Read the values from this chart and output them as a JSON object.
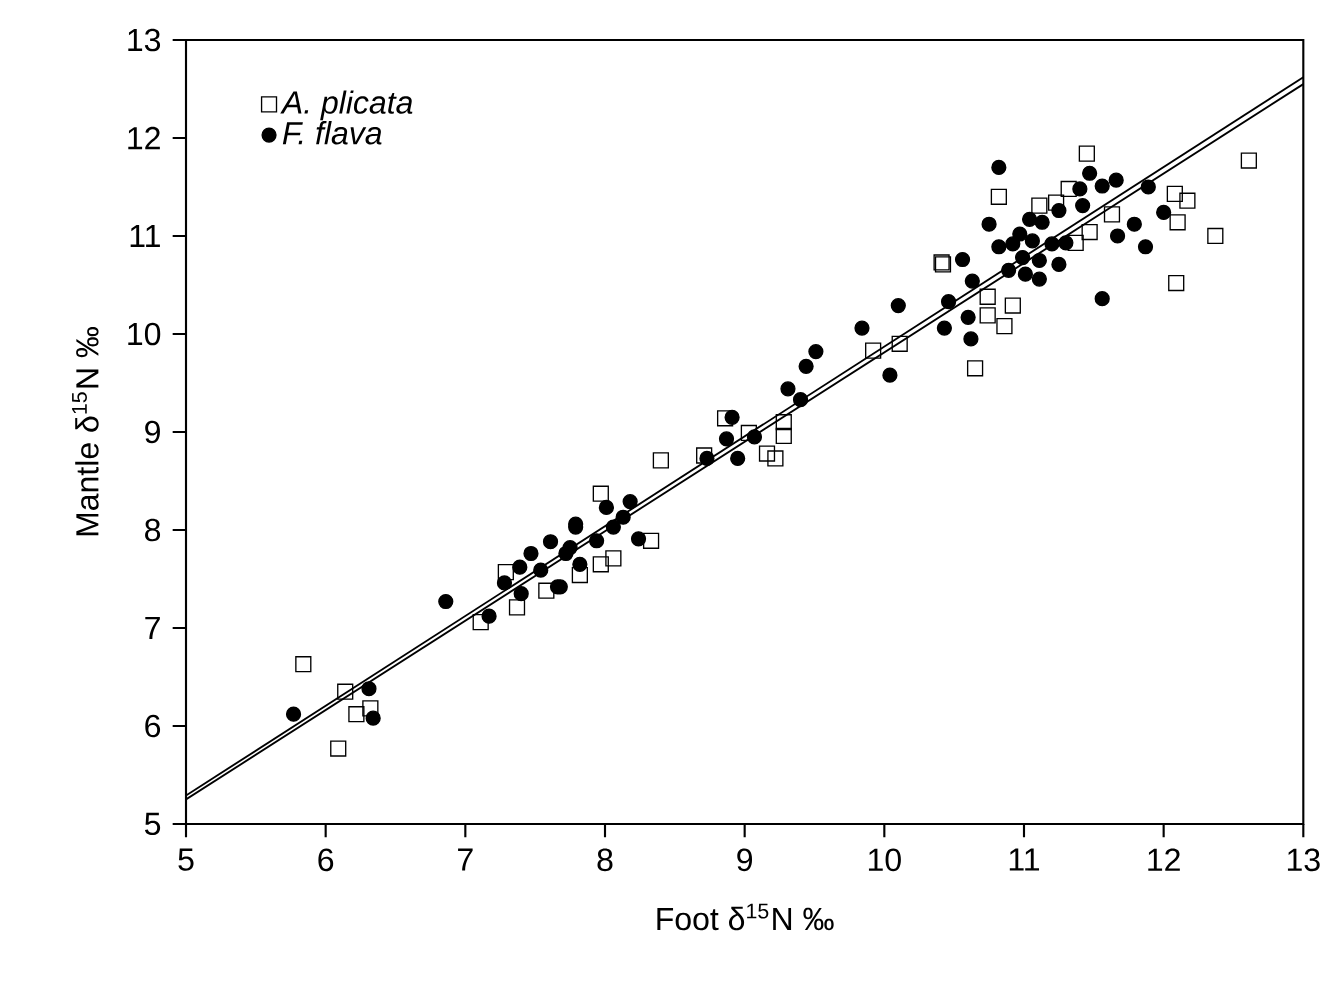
{
  "chart_data": {
    "type": "scatter",
    "xlabel": "Foot δ$^{15}$N ‰",
    "ylabel": "Mantle δ$^{15}$N ‰",
    "xlim": [
      5,
      13
    ],
    "ylim": [
      5,
      13
    ],
    "xticks": [
      5,
      6,
      7,
      8,
      9,
      10,
      11,
      12,
      13
    ],
    "yticks": [
      5,
      6,
      7,
      8,
      9,
      10,
      11,
      12,
      13
    ],
    "legend": "top left",
    "grid": false,
    "series": [
      {
        "name": "*A. plicata*",
        "color": "#000000",
        "marker": "square",
        "x": [
          5.84,
          6.14,
          6.22,
          6.32,
          6.09,
          7.11,
          7.37,
          7.58,
          7.29,
          7.97,
          8.4,
          8.71,
          8.86,
          9.03,
          9.28,
          9.28,
          9.16,
          9.22,
          9.92,
          10.11,
          10.42,
          8.33,
          7.97,
          8.06,
          7.82,
          11.45,
          12.61,
          10.82,
          11.11,
          11.23,
          11.32,
          12.08,
          12.17,
          12.1,
          12.37,
          12.09,
          11.63,
          11.47,
          11.37,
          10.41,
          10.92,
          10.86,
          10.74,
          10.74,
          10.65
        ],
        "values": [
          6.63,
          6.35,
          6.12,
          6.18,
          5.77,
          7.06,
          7.21,
          7.38,
          7.57,
          8.37,
          8.71,
          8.76,
          9.14,
          8.99,
          9.1,
          8.96,
          8.78,
          8.73,
          9.83,
          9.9,
          10.71,
          7.89,
          7.65,
          7.71,
          7.54,
          11.84,
          11.77,
          11.4,
          11.31,
          11.34,
          11.48,
          11.43,
          11.36,
          11.14,
          11.0,
          10.52,
          11.22,
          11.04,
          10.93,
          10.73,
          10.29,
          10.08,
          10.19,
          10.38,
          9.65
        ]
      },
      {
        "name": "*F. flava*",
        "color": "#000000",
        "marker": "circle",
        "x": [
          5.77,
          6.31,
          6.34,
          6.86,
          7.17,
          7.28,
          7.4,
          7.39,
          7.47,
          7.54,
          7.66,
          7.61,
          7.72,
          7.79,
          8.91,
          8.87,
          8.73,
          8.95,
          9.07,
          9.31,
          9.4,
          9.44,
          9.51,
          9.84,
          10.1,
          10.04,
          10.46,
          10.43,
          8.18,
          8.01,
          8.13,
          8.24,
          7.79,
          7.94,
          7.75,
          7.68,
          8.06,
          7.82,
          10.82,
          11.47,
          11.66,
          11.56,
          11.4,
          11.89,
          12.0,
          11.79,
          11.67,
          11.87,
          11.56,
          11.42,
          11.25,
          11.13,
          11.04,
          10.97,
          10.75,
          10.82,
          10.92,
          11.06,
          11.2,
          11.3,
          10.99,
          11.11,
          11.25,
          10.89,
          11.01,
          11.11,
          10.56,
          10.63,
          10.6,
          10.62
        ],
        "values": [
          6.12,
          6.38,
          6.08,
          7.27,
          7.12,
          7.46,
          7.35,
          7.62,
          7.76,
          7.59,
          7.42,
          7.88,
          7.76,
          8.03,
          9.15,
          8.93,
          8.73,
          8.73,
          8.95,
          9.44,
          9.33,
          9.67,
          9.82,
          10.06,
          10.29,
          9.58,
          10.33,
          10.06,
          8.29,
          8.23,
          8.13,
          7.91,
          8.06,
          7.89,
          7.82,
          7.42,
          8.03,
          7.65,
          11.7,
          11.64,
          11.57,
          11.51,
          11.48,
          11.5,
          11.24,
          11.12,
          11.0,
          10.89,
          10.36,
          11.31,
          11.26,
          11.14,
          11.17,
          11.02,
          11.12,
          10.89,
          10.92,
          10.95,
          10.92,
          10.93,
          10.78,
          10.75,
          10.71,
          10.65,
          10.61,
          10.56,
          10.76,
          10.54,
          10.17,
          9.95
        ]
      },
      {
        "type": "line",
        "color": "#000000",
        "x": [
          5,
          13
        ],
        "values": [
          5.25,
          12.55
        ]
      },
      {
        "type": "line",
        "color": "#000000",
        "x": [
          5,
          13
        ],
        "values": [
          5.29,
          12.62
        ]
      }
    ]
  }
}
